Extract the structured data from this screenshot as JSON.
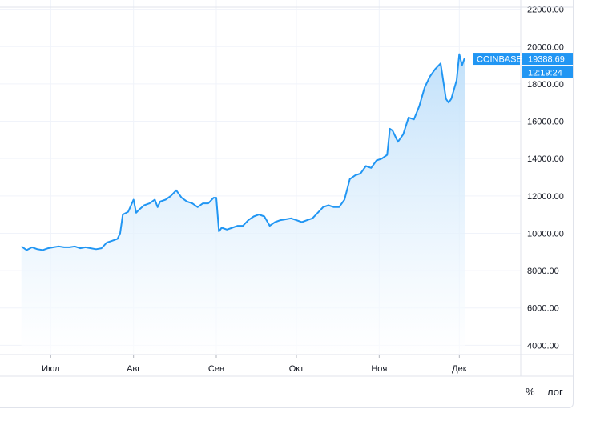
{
  "chart_data": {
    "type": "area",
    "exchange": "COINBASE",
    "last_price": "19388.69",
    "countdown": "12:19:24",
    "ylim": [
      3500,
      22500
    ],
    "y_ticks": [
      "22000.00",
      "20000.00",
      "18000.00",
      "16000.00",
      "14000.00",
      "12000.00",
      "10000.00",
      "8000.00",
      "6000.00",
      "4000.00"
    ],
    "y_tick_values": [
      22000,
      20000,
      18000,
      16000,
      14000,
      12000,
      10000,
      8000,
      6000,
      4000
    ],
    "x_ticks": [
      "Июл",
      "Авг",
      "Сен",
      "Окт",
      "Ноя",
      "Дек"
    ],
    "x_tick_dates": [
      "2020-07-01",
      "2020-08-01",
      "2020-09-01",
      "2020-10-01",
      "2020-11-01",
      "2020-12-01"
    ],
    "series": [
      {
        "x": [
          "2020-06-20",
          "2020-06-22",
          "2020-06-24",
          "2020-06-26",
          "2020-06-28",
          "2020-06-30",
          "2020-07-02",
          "2020-07-04",
          "2020-07-06",
          "2020-07-08",
          "2020-07-10",
          "2020-07-12",
          "2020-07-14",
          "2020-07-16",
          "2020-07-18",
          "2020-07-20",
          "2020-07-22",
          "2020-07-24",
          "2020-07-26",
          "2020-07-27",
          "2020-07-28",
          "2020-07-30",
          "2020-08-01",
          "2020-08-02",
          "2020-08-03",
          "2020-08-05",
          "2020-08-07",
          "2020-08-09",
          "2020-08-10",
          "2020-08-11",
          "2020-08-13",
          "2020-08-15",
          "2020-08-17",
          "2020-08-19",
          "2020-08-21",
          "2020-08-23",
          "2020-08-25",
          "2020-08-27",
          "2020-08-29",
          "2020-08-31",
          "2020-09-01",
          "2020-09-02",
          "2020-09-03",
          "2020-09-05",
          "2020-09-07",
          "2020-09-09",
          "2020-09-11",
          "2020-09-13",
          "2020-09-15",
          "2020-09-17",
          "2020-09-19",
          "2020-09-21",
          "2020-09-23",
          "2020-09-25",
          "2020-09-27",
          "2020-09-29",
          "2020-10-01",
          "2020-10-03",
          "2020-10-05",
          "2020-10-07",
          "2020-10-09",
          "2020-10-11",
          "2020-10-13",
          "2020-10-15",
          "2020-10-17",
          "2020-10-19",
          "2020-10-21",
          "2020-10-23",
          "2020-10-25",
          "2020-10-27",
          "2020-10-29",
          "2020-10-31",
          "2020-11-02",
          "2020-11-04",
          "2020-11-05",
          "2020-11-06",
          "2020-11-08",
          "2020-11-10",
          "2020-11-12",
          "2020-11-14",
          "2020-11-16",
          "2020-11-18",
          "2020-11-20",
          "2020-11-22",
          "2020-11-24",
          "2020-11-26",
          "2020-11-27",
          "2020-11-28",
          "2020-11-30",
          "2020-12-01",
          "2020-12-02",
          "2020-12-03"
        ],
        "values": [
          9300,
          9100,
          9250,
          9150,
          9100,
          9200,
          9250,
          9300,
          9250,
          9250,
          9300,
          9200,
          9250,
          9200,
          9150,
          9200,
          9500,
          9600,
          9700,
          10000,
          11000,
          11150,
          11800,
          11100,
          11250,
          11500,
          11600,
          11800,
          11400,
          11700,
          11800,
          12000,
          12300,
          11900,
          11700,
          11600,
          11400,
          11600,
          11600,
          11900,
          11900,
          10100,
          10300,
          10200,
          10300,
          10400,
          10400,
          10700,
          10900,
          11000,
          10900,
          10400,
          10600,
          10700,
          10750,
          10800,
          10700,
          10600,
          10700,
          10800,
          11100,
          11400,
          11500,
          11400,
          11400,
          11800,
          12900,
          13100,
          13200,
          13600,
          13500,
          13900,
          14000,
          14200,
          15600,
          15500,
          14900,
          15300,
          16200,
          16100,
          16800,
          17800,
          18400,
          18800,
          19100,
          17200,
          17000,
          17200,
          18200,
          19600,
          19000,
          19388.69
        ]
      }
    ],
    "grid": true,
    "line_color": "#2196f3",
    "fill_color": "#c7e3fb",
    "axis_tag_color": "#2196f3"
  },
  "bottom_bar": {
    "percent_label": "%",
    "log_label": "лог"
  }
}
